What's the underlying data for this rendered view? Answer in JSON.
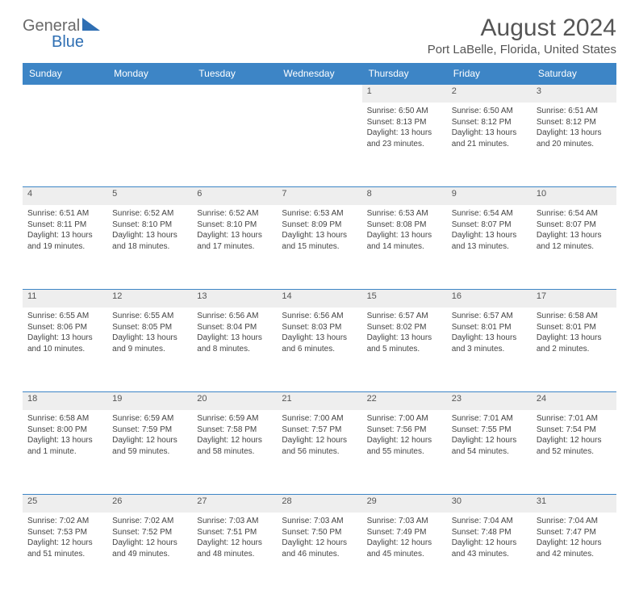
{
  "brand": {
    "text_general": "General",
    "text_blue": "Blue",
    "general_color": "#6a6a6a",
    "blue_color": "#2f6fb3",
    "triangle_color": "#2f6fb3"
  },
  "title": "August 2024",
  "subtitle": "Port LaBelle, Florida, United States",
  "colors": {
    "header_bg": "#3d85c6",
    "header_text": "#ffffff",
    "daynum_bg": "#eeeeee",
    "border": "#3d85c6",
    "text": "#444444"
  },
  "weekdays": [
    "Sunday",
    "Monday",
    "Tuesday",
    "Wednesday",
    "Thursday",
    "Friday",
    "Saturday"
  ],
  "weeks": [
    [
      null,
      null,
      null,
      null,
      {
        "n": "1",
        "sr": "6:50 AM",
        "ss": "8:13 PM",
        "dl": "13 hours and 23 minutes."
      },
      {
        "n": "2",
        "sr": "6:50 AM",
        "ss": "8:12 PM",
        "dl": "13 hours and 21 minutes."
      },
      {
        "n": "3",
        "sr": "6:51 AM",
        "ss": "8:12 PM",
        "dl": "13 hours and 20 minutes."
      }
    ],
    [
      {
        "n": "4",
        "sr": "6:51 AM",
        "ss": "8:11 PM",
        "dl": "13 hours and 19 minutes."
      },
      {
        "n": "5",
        "sr": "6:52 AM",
        "ss": "8:10 PM",
        "dl": "13 hours and 18 minutes."
      },
      {
        "n": "6",
        "sr": "6:52 AM",
        "ss": "8:10 PM",
        "dl": "13 hours and 17 minutes."
      },
      {
        "n": "7",
        "sr": "6:53 AM",
        "ss": "8:09 PM",
        "dl": "13 hours and 15 minutes."
      },
      {
        "n": "8",
        "sr": "6:53 AM",
        "ss": "8:08 PM",
        "dl": "13 hours and 14 minutes."
      },
      {
        "n": "9",
        "sr": "6:54 AM",
        "ss": "8:07 PM",
        "dl": "13 hours and 13 minutes."
      },
      {
        "n": "10",
        "sr": "6:54 AM",
        "ss": "8:07 PM",
        "dl": "13 hours and 12 minutes."
      }
    ],
    [
      {
        "n": "11",
        "sr": "6:55 AM",
        "ss": "8:06 PM",
        "dl": "13 hours and 10 minutes."
      },
      {
        "n": "12",
        "sr": "6:55 AM",
        "ss": "8:05 PM",
        "dl": "13 hours and 9 minutes."
      },
      {
        "n": "13",
        "sr": "6:56 AM",
        "ss": "8:04 PM",
        "dl": "13 hours and 8 minutes."
      },
      {
        "n": "14",
        "sr": "6:56 AM",
        "ss": "8:03 PM",
        "dl": "13 hours and 6 minutes."
      },
      {
        "n": "15",
        "sr": "6:57 AM",
        "ss": "8:02 PM",
        "dl": "13 hours and 5 minutes."
      },
      {
        "n": "16",
        "sr": "6:57 AM",
        "ss": "8:01 PM",
        "dl": "13 hours and 3 minutes."
      },
      {
        "n": "17",
        "sr": "6:58 AM",
        "ss": "8:01 PM",
        "dl": "13 hours and 2 minutes."
      }
    ],
    [
      {
        "n": "18",
        "sr": "6:58 AM",
        "ss": "8:00 PM",
        "dl": "13 hours and 1 minute."
      },
      {
        "n": "19",
        "sr": "6:59 AM",
        "ss": "7:59 PM",
        "dl": "12 hours and 59 minutes."
      },
      {
        "n": "20",
        "sr": "6:59 AM",
        "ss": "7:58 PM",
        "dl": "12 hours and 58 minutes."
      },
      {
        "n": "21",
        "sr": "7:00 AM",
        "ss": "7:57 PM",
        "dl": "12 hours and 56 minutes."
      },
      {
        "n": "22",
        "sr": "7:00 AM",
        "ss": "7:56 PM",
        "dl": "12 hours and 55 minutes."
      },
      {
        "n": "23",
        "sr": "7:01 AM",
        "ss": "7:55 PM",
        "dl": "12 hours and 54 minutes."
      },
      {
        "n": "24",
        "sr": "7:01 AM",
        "ss": "7:54 PM",
        "dl": "12 hours and 52 minutes."
      }
    ],
    [
      {
        "n": "25",
        "sr": "7:02 AM",
        "ss": "7:53 PM",
        "dl": "12 hours and 51 minutes."
      },
      {
        "n": "26",
        "sr": "7:02 AM",
        "ss": "7:52 PM",
        "dl": "12 hours and 49 minutes."
      },
      {
        "n": "27",
        "sr": "7:03 AM",
        "ss": "7:51 PM",
        "dl": "12 hours and 48 minutes."
      },
      {
        "n": "28",
        "sr": "7:03 AM",
        "ss": "7:50 PM",
        "dl": "12 hours and 46 minutes."
      },
      {
        "n": "29",
        "sr": "7:03 AM",
        "ss": "7:49 PM",
        "dl": "12 hours and 45 minutes."
      },
      {
        "n": "30",
        "sr": "7:04 AM",
        "ss": "7:48 PM",
        "dl": "12 hours and 43 minutes."
      },
      {
        "n": "31",
        "sr": "7:04 AM",
        "ss": "7:47 PM",
        "dl": "12 hours and 42 minutes."
      }
    ]
  ],
  "labels": {
    "sunrise": "Sunrise:",
    "sunset": "Sunset:",
    "daylight": "Daylight:"
  }
}
